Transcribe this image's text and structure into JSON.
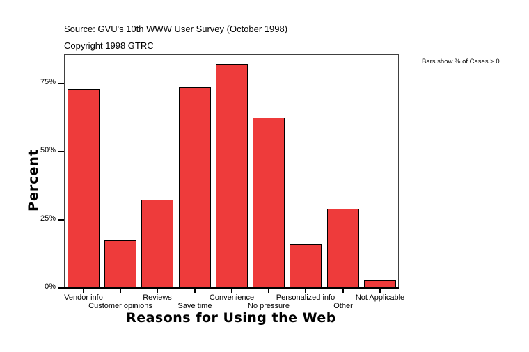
{
  "header": {
    "source": "Source: GVU's 10th WWW User Survey (October 1998)",
    "copyright": "Copyright 1998 GTRC",
    "note": "Bars show % of Cases > 0"
  },
  "axes": {
    "ylabel": "Percent",
    "xlabel": "Reasons for Using the Web",
    "yticks": [
      "0%",
      "25%",
      "50%",
      "75%"
    ]
  },
  "colors": {
    "bar": "#ee3b3b",
    "outline": "#000000"
  },
  "chart_data": {
    "type": "bar",
    "title": "Source: GVU's 10th WWW User Survey (October 1998)",
    "subtitle": "Copyright 1998 GTRC",
    "annotation": "Bars show % of Cases > 0",
    "xlabel": "Reasons for Using the Web",
    "ylabel": "Percent",
    "ylim": [
      0,
      85
    ],
    "yticks": [
      0,
      25,
      50,
      75
    ],
    "ytick_labels": [
      "0%",
      "25%",
      "50%",
      "75%"
    ],
    "grid": false,
    "legend": null,
    "categories": [
      "Vendor info",
      "Customer opinions",
      "Reviews",
      "Save time",
      "Convenience",
      "No pressure",
      "Personalized info",
      "Other",
      "Not Applicable"
    ],
    "values": [
      73.0,
      17.6,
      32.4,
      73.7,
      82.1,
      62.5,
      16.1,
      29.1,
      2.8
    ]
  }
}
